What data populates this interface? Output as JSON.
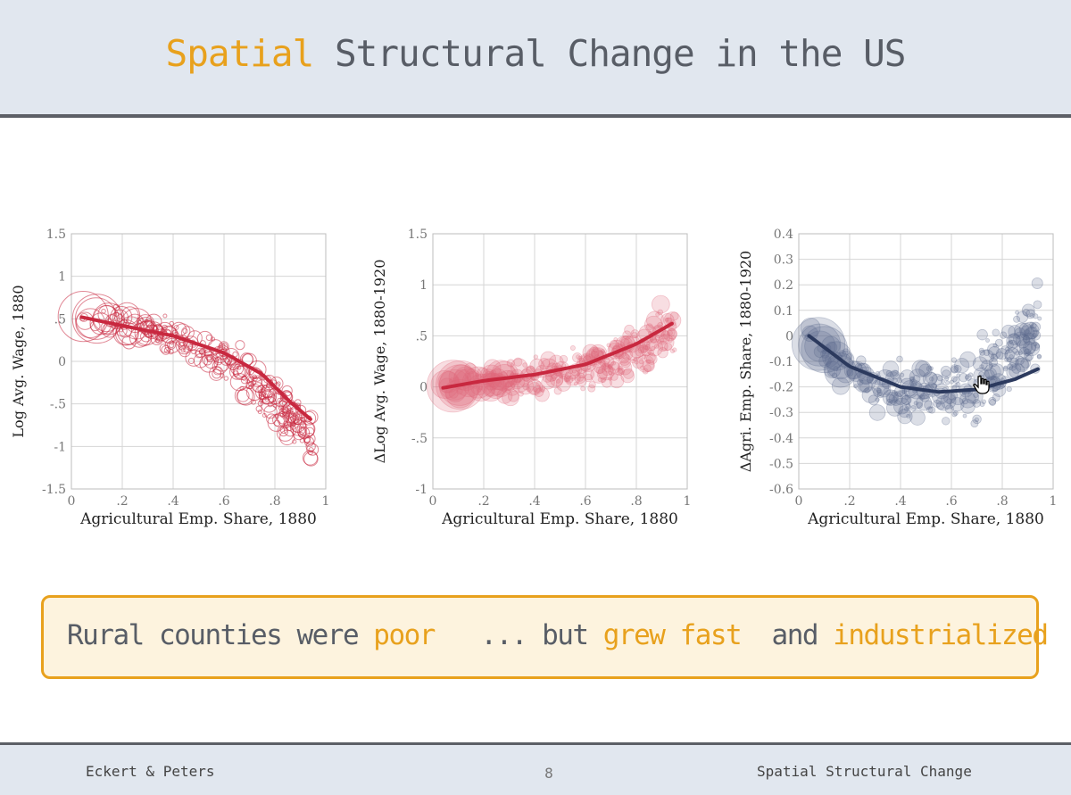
{
  "header": {
    "title_accent": "Spatial",
    "title_rest": "Structural Change in the US"
  },
  "callout": {
    "part1": "Rural counties were ",
    "poor": "poor",
    "part2": "   ... but ",
    "grew": "grew fast",
    "part3": "  and ",
    "ind": "industrialized"
  },
  "footer": {
    "left": "Eckert & Peters",
    "page": "8",
    "right": "Spatial Structural Change"
  },
  "colors": {
    "accent": "#e8a11d",
    "red": "#c8283f",
    "navy": "#2c3a5e",
    "text": "#585d66"
  },
  "icons": [
    "hand-cursor-icon"
  ],
  "chart_data": [
    {
      "type": "scatter",
      "style": "hollow",
      "color": "#c8283f",
      "xlabel": "Agricultural  Emp. Share, 1880",
      "ylabel": "Log Avg. Wage, 1880",
      "xlim": [
        0,
        1
      ],
      "ylim": [
        -1.5,
        1.5
      ],
      "xticks": [
        0,
        0.2,
        0.4,
        0.6,
        0.8,
        1
      ],
      "xtick_labels": [
        "0",
        ".2",
        ".4",
        ".6",
        ".8",
        "1"
      ],
      "yticks": [
        -1.5,
        -1,
        -0.5,
        0,
        0.5,
        1,
        1.5
      ],
      "ytick_labels": [
        "-1.5",
        "-1",
        "-.5",
        "0",
        ".5",
        "1",
        "1.5"
      ],
      "trend": {
        "x": [
          0.04,
          0.2,
          0.4,
          0.6,
          0.75,
          0.85,
          0.94
        ],
        "y": [
          0.52,
          0.42,
          0.3,
          0.1,
          -0.15,
          -0.45,
          -0.68
        ]
      },
      "trend_a": [
        0.55,
        -0.45,
        -0.25,
        -0.95
      ],
      "noise": 0.18
    },
    {
      "type": "scatter",
      "style": "filled",
      "color": "#e0687b",
      "trend_color": "#c8283f",
      "xlabel": "Agricultural  Emp. Share, 1880",
      "ylabel": "ΔLog Avg. Wage, 1880-1920",
      "xlim": [
        0,
        1
      ],
      "ylim": [
        -1,
        1.5
      ],
      "xticks": [
        0,
        0.2,
        0.4,
        0.6,
        0.8,
        1
      ],
      "xtick_labels": [
        "0",
        ".2",
        ".4",
        ".6",
        ".8",
        "1"
      ],
      "yticks": [
        -1,
        -0.5,
        0,
        0.5,
        1,
        1.5
      ],
      "ytick_labels": [
        "-1",
        "-.5",
        "0",
        ".5",
        "1",
        "1.5"
      ],
      "trend": {
        "x": [
          0.04,
          0.2,
          0.4,
          0.6,
          0.8,
          0.94
        ],
        "y": [
          -0.01,
          0.06,
          0.12,
          0.22,
          0.42,
          0.62
        ]
      },
      "trend_a": [
        -0.03,
        0.55,
        -1.1,
        1.25
      ],
      "noise": 0.16
    },
    {
      "type": "scatter",
      "style": "filled",
      "color": "#5d6a8c",
      "trend_color": "#2c3a5e",
      "xlabel": "Agricultural  Emp. Share, 1880",
      "ylabel": "ΔAgri. Emp. Share, 1880-1920",
      "xlim": [
        0,
        1
      ],
      "ylim": [
        -0.6,
        0.4
      ],
      "xticks": [
        0,
        0.2,
        0.4,
        0.6,
        0.8,
        1
      ],
      "xtick_labels": [
        "0",
        ".2",
        ".4",
        ".6",
        ".8",
        "1"
      ],
      "yticks": [
        -0.6,
        -0.5,
        -0.4,
        -0.3,
        -0.2,
        -0.1,
        0,
        0.1,
        0.2,
        0.3,
        0.4
      ],
      "ytick_labels": [
        "-0.6",
        "-0.5",
        "-0.4",
        "-0.3",
        "-0.2",
        "-0.1",
        "0",
        "0.1",
        "0.2",
        "0.3",
        "0.4"
      ],
      "trend": {
        "x": [
          0.04,
          0.2,
          0.4,
          0.55,
          0.7,
          0.85,
          0.94
        ],
        "y": [
          0.0,
          -0.12,
          -0.2,
          -0.22,
          -0.21,
          -0.17,
          -0.13
        ]
      },
      "trend_a": [
        0.05,
        -1.15,
        1.2,
        0.0
      ],
      "noise": 0.09
    }
  ]
}
